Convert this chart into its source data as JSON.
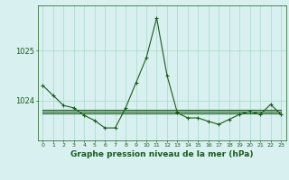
{
  "x": [
    0,
    1,
    2,
    3,
    4,
    5,
    6,
    7,
    8,
    9,
    10,
    11,
    12,
    13,
    14,
    15,
    16,
    17,
    18,
    19,
    20,
    21,
    22,
    23
  ],
  "y_main": [
    1024.3,
    1024.1,
    1023.9,
    1023.85,
    1023.7,
    1023.6,
    1023.45,
    1023.45,
    1023.85,
    1024.35,
    1024.85,
    1025.65,
    1024.5,
    1023.75,
    1023.65,
    1023.65,
    1023.58,
    1023.52,
    1023.62,
    1023.72,
    1023.78,
    1023.72,
    1023.92,
    1023.72
  ],
  "y_lines": [
    [
      1023.82,
      1023.82,
      1023.82,
      1023.82,
      1023.82,
      1023.82,
      1023.82,
      1023.82,
      1023.82,
      1023.82,
      1023.82,
      1023.82,
      1023.82,
      1023.82,
      1023.82,
      1023.82,
      1023.82,
      1023.82,
      1023.82,
      1023.82,
      1023.82,
      1023.82,
      1023.82,
      1023.82
    ],
    [
      1023.74,
      1023.74,
      1023.74,
      1023.74,
      1023.74,
      1023.74,
      1023.74,
      1023.74,
      1023.74,
      1023.74,
      1023.74,
      1023.74,
      1023.74,
      1023.74,
      1023.74,
      1023.74,
      1023.74,
      1023.74,
      1023.74,
      1023.74,
      1023.74,
      1023.74,
      1023.74,
      1023.74
    ],
    [
      1023.78,
      1023.78,
      1023.78,
      1023.78,
      1023.78,
      1023.78,
      1023.78,
      1023.78,
      1023.78,
      1023.78,
      1023.78,
      1023.78,
      1023.78,
      1023.78,
      1023.78,
      1023.78,
      1023.78,
      1023.78,
      1023.78,
      1023.78,
      1023.78,
      1023.78,
      1023.78,
      1023.78
    ]
  ],
  "line_color": "#1a5c1a",
  "bg_color": "#d8f0f0",
  "grid_color": "#a8d8c8",
  "xlabel": "Graphe pression niveau de la mer (hPa)",
  "yticks": [
    1024,
    1025
  ],
  "xticks": [
    0,
    1,
    2,
    3,
    4,
    5,
    6,
    7,
    8,
    9,
    10,
    11,
    12,
    13,
    14,
    15,
    16,
    17,
    18,
    19,
    20,
    21,
    22,
    23
  ],
  "ylim": [
    1023.2,
    1025.9
  ],
  "xlim": [
    -0.5,
    23.5
  ],
  "figsize": [
    3.2,
    2.0
  ],
  "dpi": 100
}
